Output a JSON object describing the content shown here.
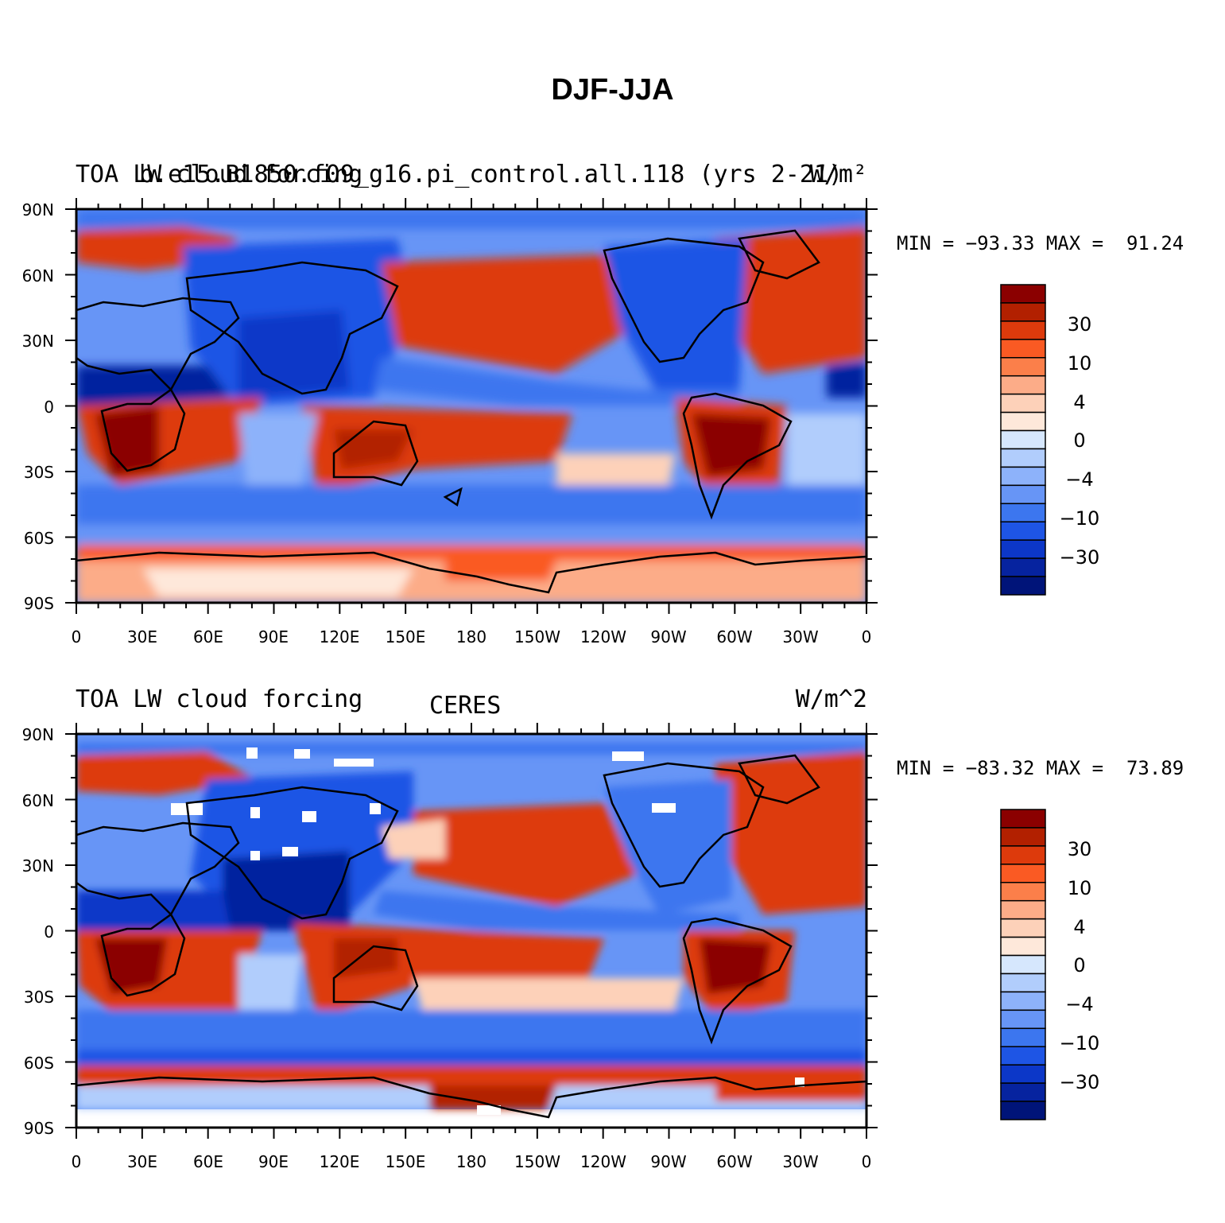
{
  "title": "DJF-JJA",
  "colorbar": {
    "colors": [
      "#8b0000",
      "#b22000",
      "#dd3a0c",
      "#fa5a23",
      "#fb7f4a",
      "#fcac88",
      "#fdd1b9",
      "#fee8da",
      "#d6e7fd",
      "#b1cdfc",
      "#8db2fa",
      "#6795f6",
      "#3c76ef",
      "#1e55e5",
      "#0c37c8",
      "#06239f",
      "#001479"
    ],
    "labels": [
      "30",
      "10",
      "4",
      "0",
      "−4",
      "−10",
      "−30"
    ]
  },
  "axes": {
    "lat_ticks": [
      "90N",
      "60N",
      "30N",
      "0",
      "30S",
      "60S",
      "90S"
    ],
    "lon_ticks": [
      "0",
      "30E",
      "60E",
      "90E",
      "120E",
      "150E",
      "180",
      "150W",
      "120W",
      "90W",
      "60W",
      "30W",
      "0"
    ]
  },
  "panels": [
    {
      "left_label": "TOA LW cloud forcing",
      "overlap_label": "b.e15.B1850.f09_g16.pi_control.all.118 (yrs 2-21)",
      "center_label": "",
      "units": "W/m²",
      "minmax": "MIN = −93.33 MAX =  91.24",
      "min": -93.33,
      "max": 91.24
    },
    {
      "left_label": "TOA LW cloud forcing",
      "overlap_label": "",
      "center_label": "CERES",
      "units": "W/m^2",
      "minmax": "MIN = −83.32 MAX =  73.89",
      "min": -83.32,
      "max": 73.89
    }
  ]
}
